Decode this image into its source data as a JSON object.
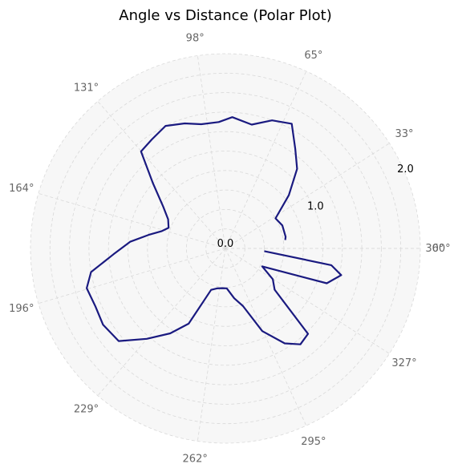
{
  "chart_data": {
    "type": "line",
    "projection": "polar",
    "title": "Angle vs Distance (Polar Plot)",
    "theta_unit": "degrees",
    "theta_tick_labels": [
      "0°",
      "33°",
      "65°",
      "98°",
      "131°",
      "164°",
      "196°",
      "229°",
      "262°",
      "295°",
      "327°",
      "360°"
    ],
    "theta_ticks": [
      0,
      32.7,
      65.5,
      98.2,
      130.9,
      163.6,
      196.4,
      229.1,
      261.8,
      294.5,
      327.3,
      360
    ],
    "r_tick_labels": [
      "0.0",
      "1.0",
      "2.0"
    ],
    "r_ticks": [
      0,
      1,
      2
    ],
    "r_gridlines": [
      0.2,
      0.4,
      0.6,
      0.8,
      1.0,
      1.2,
      1.4,
      1.6,
      1.8,
      2.0
    ],
    "rlim": [
      0,
      2.0
    ],
    "grid": true,
    "background_color": "#f7f7f7",
    "grid_color": "#d9d9d9",
    "line_color": "#1a1a80",
    "series": [
      {
        "theta": [
          8,
          11,
          22,
          31,
          40,
          48,
          55,
          62,
          70,
          78,
          87,
          93,
          101,
          108,
          116,
          124,
          131,
          138,
          146,
          153,
          160,
          165,
          170,
          176,
          183,
          190,
          196,
          204,
          212,
          221,
          229,
          237,
          244,
          251,
          258,
          265,
          272,
          280,
          287,
          294,
          302,
          308,
          314,
          320,
          327,
          334,
          341,
          347,
          351,
          356
        ],
        "r": [
          0.62,
          0.63,
          0.63,
          0.6,
          0.85,
          1.1,
          1.25,
          1.45,
          1.4,
          1.3,
          1.35,
          1.3,
          1.3,
          1.35,
          1.4,
          1.35,
          1.32,
          1.0,
          0.77,
          0.66,
          0.62,
          0.68,
          0.8,
          0.98,
          1.15,
          1.4,
          1.48,
          1.46,
          1.48,
          1.45,
          1.23,
          1.04,
          0.86,
          0.45,
          0.42,
          0.41,
          0.41,
          0.52,
          0.62,
          0.93,
          1.15,
          1.25,
          1.22,
          0.66,
          0.58,
          0.42,
          1.1,
          1.22,
          1.1,
          0.4
        ]
      }
    ]
  }
}
